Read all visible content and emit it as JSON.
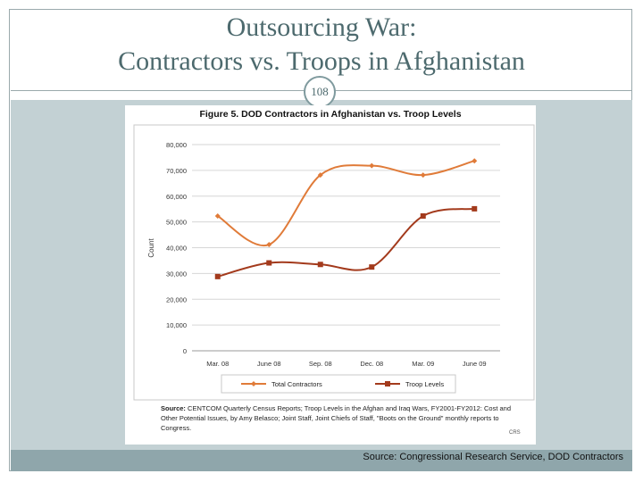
{
  "slide": {
    "title_line1": "Outsourcing War:",
    "title_line2": "Contractors vs. Troops in Afghanistan",
    "number": "108",
    "source": "Source: Congressional Research Service, DOD Contractors"
  },
  "figure": {
    "caption_label": "Source:",
    "caption_text": "CENTCOM Quarterly Census Reports; Troop Levels in the Afghan and Iraq Wars, FY2001-FY2012: Cost and Other Potential Issues, by Amy Belasco; Joint Staff, Joint Chiefs of Staff, \"Boots on the Ground\" monthly reports to Congress.",
    "mark": "CRS"
  },
  "chart_data": {
    "type": "line",
    "title": "Figure 5. DOD Contractors in Afghanistan vs. Troop Levels",
    "xlabel": "",
    "ylabel": "Count",
    "categories": [
      "Mar. 08",
      "June 08",
      "Sep. 08",
      "Dec. 08",
      "Mar. 09",
      "June 09"
    ],
    "yticks": [
      "0",
      "10,000",
      "20,000",
      "30,000",
      "40,000",
      "50,000",
      "60,000",
      "70,000",
      "80,000"
    ],
    "ylim": [
      0,
      80000
    ],
    "grid": true,
    "legend_position": "bottom",
    "series": [
      {
        "name": "Total Contractors",
        "color": "#e07b39",
        "marker": "diamond",
        "values": [
          52300,
          41200,
          68200,
          71800,
          68200,
          73700
        ]
      },
      {
        "name": "Troop Levels",
        "color": "#a33a1c",
        "marker": "square",
        "values": [
          28800,
          34100,
          33500,
          32500,
          52300,
          55100
        ]
      }
    ]
  }
}
